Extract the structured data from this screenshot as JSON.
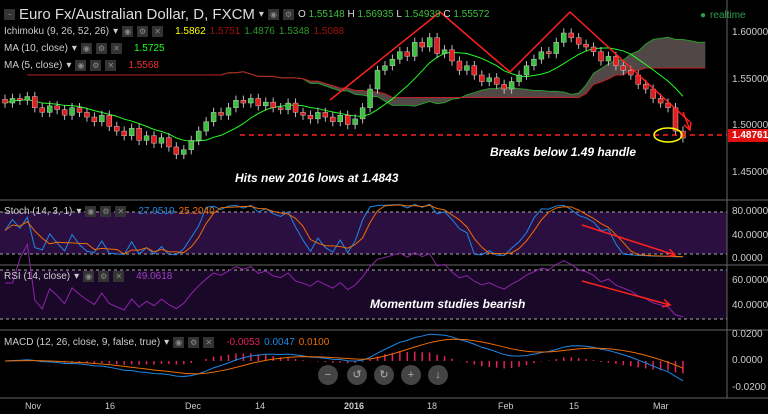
{
  "header": {
    "title": "Euro Fx/Australian Dollar, D, FXCM",
    "ohlc": [
      {
        "k": "O",
        "v": "1.55148"
      },
      {
        "k": "H",
        "v": "1.56935"
      },
      {
        "k": "L",
        "v": "1.54939"
      },
      {
        "k": "C",
        "v": "1.55572"
      }
    ],
    "realtime": "realtime"
  },
  "indicators": {
    "ichimoku": {
      "label": "Ichimoku (9, 26, 52, 26)",
      "values": [
        "1.5862",
        "1.5751",
        "1.4876",
        "1.5348",
        "1.5088"
      ]
    },
    "ma10": {
      "label": "MA (10, close)",
      "value": "1.5725"
    },
    "ma5": {
      "label": "MA (5, close)",
      "value": "1.5568"
    },
    "stoch": {
      "label": "Stoch (14, 3, 1)",
      "k": "27.9519",
      "d": "25.2040"
    },
    "rsi": {
      "label": "RSI (14, close)",
      "value": "49.0618"
    },
    "macd": {
      "label": "MACD (12, 26, close, 9, false, true)",
      "values": [
        "-0.0053",
        "0.0047",
        "0.0100"
      ]
    }
  },
  "annotations": {
    "lows": "Hits new 2016 lows at 1.4843",
    "handle": "Breaks below 1.49 handle",
    "momentum": "Momentum studies bearish"
  },
  "last_price": "1.48761",
  "colors": {
    "up": "#3fbf3f",
    "down": "#e02020",
    "cloud": "#5a4f4f",
    "stoch_k": "#1e88e5",
    "stoch_d": "#ef6c00",
    "rsi": "#8e24aa",
    "annotation": "#ff2020"
  },
  "nav_buttons": [
    "−",
    "↺",
    "↻",
    "+",
    "↓"
  ],
  "chart_data": {
    "type": "candlestick",
    "x_ticks": [
      "Nov",
      "16",
      "Dec",
      "14",
      "2016",
      "18",
      "Feb",
      "15",
      "Mar"
    ],
    "y_ticks": [
      "1.60000",
      "1.55000",
      "1.50000",
      "1.45000"
    ],
    "stoch_ticks": [
      "80.0000",
      "40.0000",
      "0.0000"
    ],
    "rsi_ticks": [
      "60.0000",
      "40.0000"
    ],
    "macd_ticks": [
      "0.0200",
      "0.0000",
      "-0.0200"
    ],
    "ylim": [
      1.42,
      1.635
    ],
    "close": [
      1.525,
      1.53,
      1.528,
      1.532,
      1.52,
      1.515,
      1.522,
      1.518,
      1.512,
      1.52,
      1.515,
      1.51,
      1.505,
      1.512,
      1.5,
      1.495,
      1.49,
      1.498,
      1.485,
      1.49,
      1.482,
      1.488,
      1.478,
      1.47,
      1.475,
      1.485,
      1.495,
      1.505,
      1.515,
      1.512,
      1.52,
      1.528,
      1.525,
      1.53,
      1.522,
      1.526,
      1.52,
      1.518,
      1.525,
      1.515,
      1.512,
      1.508,
      1.515,
      1.51,
      1.505,
      1.512,
      1.502,
      1.508,
      1.52,
      1.54,
      1.56,
      1.565,
      1.572,
      1.58,
      1.575,
      1.59,
      1.585,
      1.595,
      1.578,
      1.582,
      1.57,
      1.56,
      1.565,
      1.555,
      1.548,
      1.552,
      1.545,
      1.54,
      1.548,
      1.555,
      1.565,
      1.572,
      1.58,
      1.578,
      1.59,
      1.6,
      1.595,
      1.588,
      1.585,
      1.58,
      1.57,
      1.575,
      1.565,
      1.56,
      1.555,
      1.545,
      1.54,
      1.53,
      1.525,
      1.52,
      1.495,
      1.4876
    ]
  }
}
